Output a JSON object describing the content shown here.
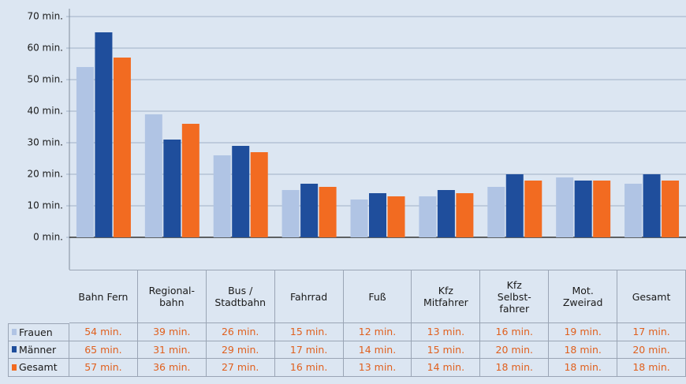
{
  "chart_data": {
    "type": "bar",
    "categories": [
      "Bahn Fern",
      "Regional-\nbahn",
      "Bus /\nStadtbahn",
      "Fahrrad",
      "Fuß",
      "Kfz\nMitfahrer",
      "Kfz\nSelbst-\nfahrer",
      "Mot.\nZweirad",
      "Gesamt"
    ],
    "series": [
      {
        "name": "Frauen",
        "color": "#b0c4e4",
        "values": [
          54,
          39,
          26,
          15,
          12,
          13,
          16,
          19,
          17
        ],
        "value_labels": [
          "54 min.",
          "39 min.",
          "26 min.",
          "15 min.",
          "12 min.",
          "13 min.",
          "16 min.",
          "19 min.",
          "17 min."
        ]
      },
      {
        "name": "Männer",
        "color": "#1f4e9c",
        "values": [
          65,
          31,
          29,
          17,
          14,
          15,
          20,
          18,
          20
        ],
        "value_labels": [
          "65 min.",
          "31 min.",
          "29 min.",
          "17 min.",
          "14 min.",
          "15 min.",
          "20 min.",
          "18 min.",
          "20 min."
        ]
      },
      {
        "name": "Gesamt",
        "color": "#f26b21",
        "values": [
          57,
          36,
          27,
          16,
          13,
          14,
          18,
          18,
          18
        ],
        "value_labels": [
          "57 min.",
          "36 min.",
          "27 min.",
          "16 min.",
          "13 min.",
          "14 min.",
          "18 min.",
          "18 min.",
          "18 min."
        ]
      }
    ],
    "ylim": [
      0,
      70
    ],
    "yticks": [
      {
        "value": 0,
        "label": "0 min."
      },
      {
        "value": 10,
        "label": "10 min."
      },
      {
        "value": 20,
        "label": "20 min."
      },
      {
        "value": 30,
        "label": "30 min."
      },
      {
        "value": 40,
        "label": "40 min."
      },
      {
        "value": 50,
        "label": "50 min."
      },
      {
        "value": 60,
        "label": "60 min."
      },
      {
        "value": 70,
        "label": "70 min."
      }
    ],
    "grid": true
  }
}
